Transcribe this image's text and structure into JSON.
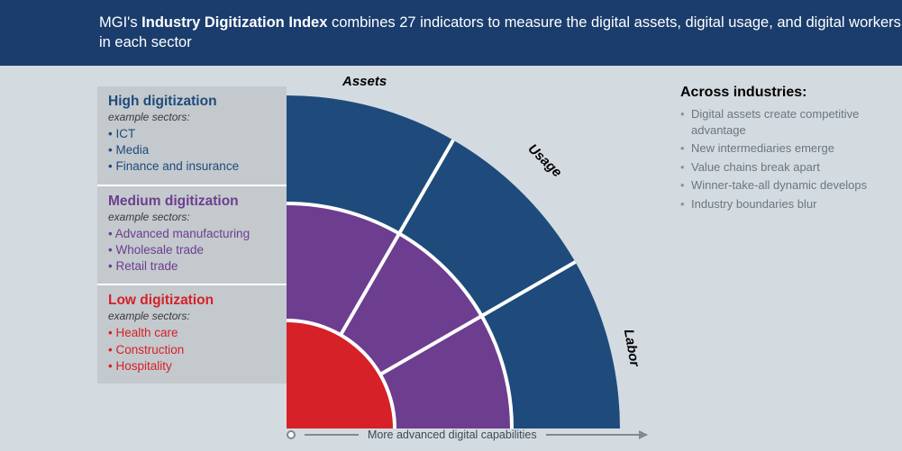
{
  "header": {
    "prefix": "MGI's ",
    "bold": "Industry Digitization Index",
    "suffix": " combines 27 indicators to measure the digital assets, digital usage, and digital workers in each sector"
  },
  "colors": {
    "page_bg": "#d4dbe0",
    "header_bg": "#1a3d6d",
    "legend_bg": "#c3c9cd",
    "ring_outer": "#1e4b7b",
    "ring_mid": "#6d3d8f",
    "ring_inner": "#d62128",
    "divider": "#ffffff",
    "axis": "#7f8a92"
  },
  "tiers": [
    {
      "title": "High digitization",
      "title_color": "#1e4b7b",
      "subtitle": "example sectors:",
      "bullet_color": "#1e4b7b",
      "items": [
        "ICT",
        "Media",
        "Finance and insurance"
      ]
    },
    {
      "title": "Medium digitization",
      "title_color": "#6d3d8f",
      "subtitle": "example sectors:",
      "bullet_color": "#6d3d8f",
      "items": [
        "Advanced manufacturing",
        "Wholesale trade",
        "Retail trade"
      ]
    },
    {
      "title": "Low digitization",
      "title_color": "#d62128",
      "subtitle": "example sectors:",
      "bullet_color": "#d62128",
      "items": [
        "Health care",
        "Construction",
        "Hospitality"
      ]
    }
  ],
  "chart": {
    "radii": [
      120,
      250,
      370
    ],
    "wedges": 3,
    "wedge_labels": [
      "Assets",
      "Usage",
      "Labor"
    ],
    "divider_width": 4
  },
  "axis_caption": "More advanced digital capabilities",
  "across": {
    "heading": "Across industries:",
    "items": [
      "Digital assets create competitive advantage",
      "New intermediaries emerge",
      "Value chains break apart",
      "Winner-take-all dynamic develops",
      "Industry boundaries blur"
    ]
  }
}
